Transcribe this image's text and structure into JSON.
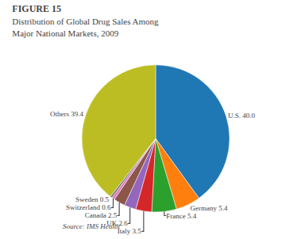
{
  "chart_data": {
    "type": "pie",
    "title": "FIGURE 15",
    "subtitle": "Distribution of Global Drug Sales Among Major National Markets, 2009",
    "categories": [
      "U.S. 40.0",
      "Germany 5.4",
      "France 5.4",
      "Italy 3.5",
      "UK 2.6",
      "Canada 2.5",
      "Switzerland 0.6",
      "Sweden 0.5",
      "Others 39.4"
    ],
    "values": [
      40.0,
      5.4,
      5.4,
      3.5,
      2.6,
      2.5,
      0.6,
      0.5,
      39.4
    ],
    "annotations": [
      "Source: IMS Health"
    ]
  }
}
